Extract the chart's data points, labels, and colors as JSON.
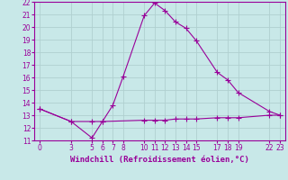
{
  "line1_x": [
    0,
    3,
    5,
    6,
    7,
    8,
    10,
    11,
    12,
    13,
    14,
    15,
    17,
    18,
    19,
    22,
    23
  ],
  "line1_y": [
    13.5,
    12.5,
    11.2,
    12.5,
    13.8,
    16.1,
    20.9,
    21.9,
    21.3,
    20.4,
    19.9,
    18.9,
    16.4,
    15.8,
    14.8,
    13.3,
    13.0
  ],
  "line2_x": [
    0,
    3,
    5,
    6,
    10,
    11,
    12,
    13,
    14,
    15,
    17,
    18,
    19,
    22,
    23
  ],
  "line2_y": [
    13.5,
    12.5,
    12.5,
    12.5,
    12.6,
    12.6,
    12.6,
    12.7,
    12.7,
    12.7,
    12.8,
    12.8,
    12.8,
    13.0,
    13.0
  ],
  "line_color": "#990099",
  "bg_color": "#c8e8e8",
  "grid_color": "#b0d0d0",
  "xlabel": "Windchill (Refroidissement éolien,°C)",
  "xlim": [
    -0.5,
    23.5
  ],
  "ylim": [
    11,
    22
  ],
  "xticks": [
    0,
    3,
    5,
    6,
    7,
    8,
    10,
    11,
    12,
    13,
    14,
    15,
    17,
    18,
    19,
    22,
    23
  ],
  "yticks": [
    11,
    12,
    13,
    14,
    15,
    16,
    17,
    18,
    19,
    20,
    21,
    22
  ],
  "tick_fontsize": 5.5,
  "xlabel_fontsize": 6.5
}
